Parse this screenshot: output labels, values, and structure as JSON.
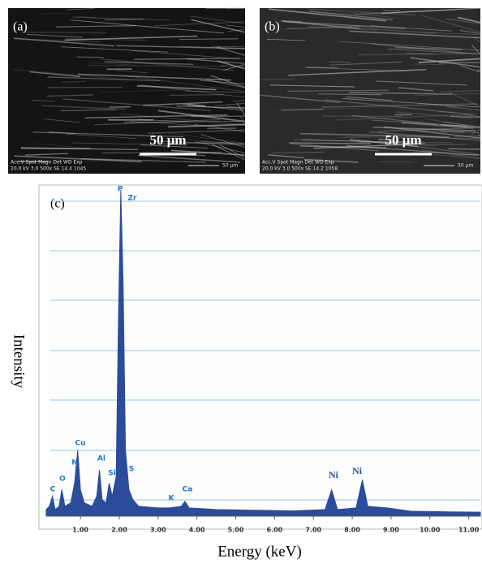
{
  "panels": [
    {
      "label": "(a)",
      "scale_bar": "50 μm",
      "info_header": "Acc.V  Spot Magn    Det  WD  Exp",
      "info_values": "20.0 kV 3.0   500x    SE   14.4 1045",
      "info_scale": "50 μm"
    },
    {
      "label": "(b)",
      "scale_bar": "50 μm",
      "info_header": "Acc.V  Spot Magn    Det  WD  Exp",
      "info_values": "20.0 kV 3.0   500x    SE   14.2 1058",
      "info_scale": "50 μm"
    }
  ],
  "chart_data": {
    "type": "area",
    "panel_label": "(c)",
    "xlabel": "Energy (keV)",
    "ylabel": "Intensity",
    "color": "#2b4c9b",
    "x": [
      0.12,
      0.2,
      0.28,
      0.35,
      0.45,
      0.52,
      0.6,
      0.75,
      0.85,
      0.93,
      1.0,
      1.1,
      1.3,
      1.42,
      1.49,
      1.56,
      1.66,
      1.74,
      1.82,
      1.92,
      1.98,
      2.04,
      2.1,
      2.16,
      2.25,
      2.35,
      2.5,
      3.0,
      3.3,
      3.6,
      3.69,
      3.8,
      4.5,
      5.5,
      6.5,
      7.3,
      7.47,
      7.62,
      8.1,
      8.26,
      8.4,
      8.9,
      9.5,
      10.5,
      11.3
    ],
    "values": [
      2,
      3,
      6,
      2,
      3,
      8,
      3,
      4,
      10,
      20,
      8,
      4,
      3,
      6,
      14,
      5,
      4,
      10,
      6,
      12,
      60,
      99,
      70,
      20,
      8,
      5,
      3,
      2.5,
      2.5,
      3,
      4.5,
      2.5,
      2,
      1.8,
      1.6,
      2,
      8,
      2,
      2.5,
      11,
      3,
      2.5,
      1.5,
      1.3,
      1.2
    ],
    "xlim": [
      0.12,
      11.3
    ],
    "ylim": [
      0,
      100
    ],
    "xticks": [
      {
        "value": 1,
        "label": "1.00"
      },
      {
        "value": 2,
        "label": "2.00"
      },
      {
        "value": 3,
        "label": "3.00"
      },
      {
        "value": 4,
        "label": "4.00"
      },
      {
        "value": 5,
        "label": "5.00"
      },
      {
        "value": 6,
        "label": "6.00"
      },
      {
        "value": 7,
        "label": "7.00"
      },
      {
        "value": 8,
        "label": "8.00"
      },
      {
        "value": 9,
        "label": "9.00"
      },
      {
        "value": 10,
        "label": "10.00"
      },
      {
        "value": 11,
        "label": "11.00"
      }
    ],
    "annotations": [
      "C",
      "O",
      "N",
      "Cu",
      "Al",
      "Si",
      "P",
      "Zr",
      "S",
      "K",
      "Ca",
      "Ni",
      "Ni"
    ]
  }
}
